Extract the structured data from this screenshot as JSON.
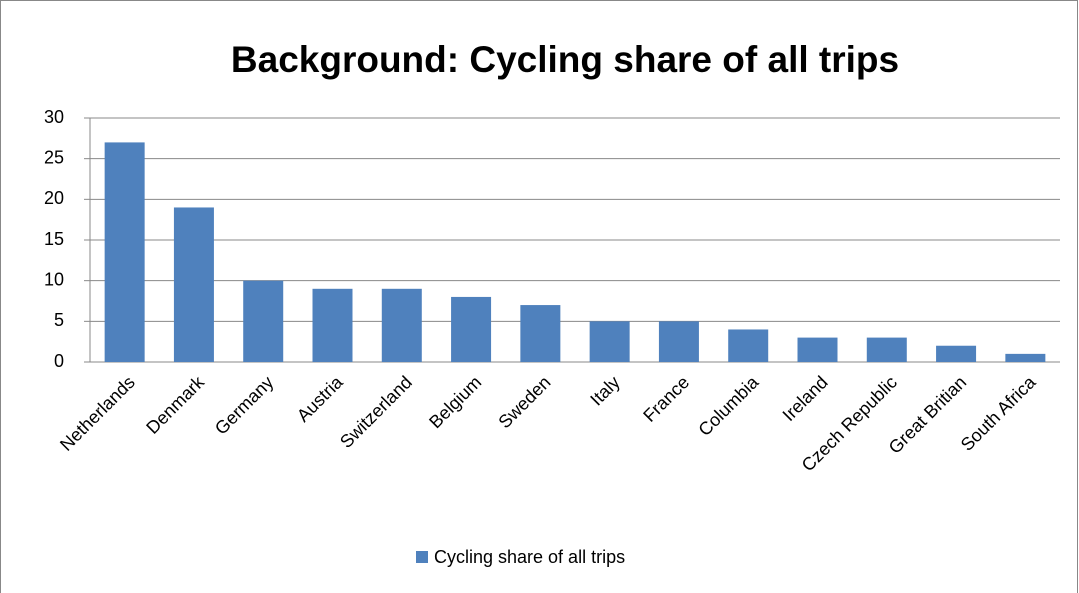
{
  "chart_data": {
    "type": "bar",
    "title": "Background: Cycling share of all trips",
    "categories": [
      "Netherlands",
      "Denmark",
      "Germany",
      "Austria",
      "Switzerland",
      "Belgium",
      "Sweden",
      "Italy",
      "France",
      "Columbia",
      "Ireland",
      "Czech Republic",
      "Great Britian",
      "South Africa"
    ],
    "series": [
      {
        "name": "Cycling share of all trips",
        "color": "#4f81bd",
        "values": [
          27,
          19,
          10,
          9,
          9,
          8,
          7,
          5,
          5,
          4,
          3,
          3,
          2,
          1
        ]
      }
    ],
    "ylim": [
      0,
      30
    ],
    "yticks": [
      0,
      5,
      10,
      15,
      20,
      25,
      30
    ],
    "grid": true,
    "legend": "bottom"
  }
}
